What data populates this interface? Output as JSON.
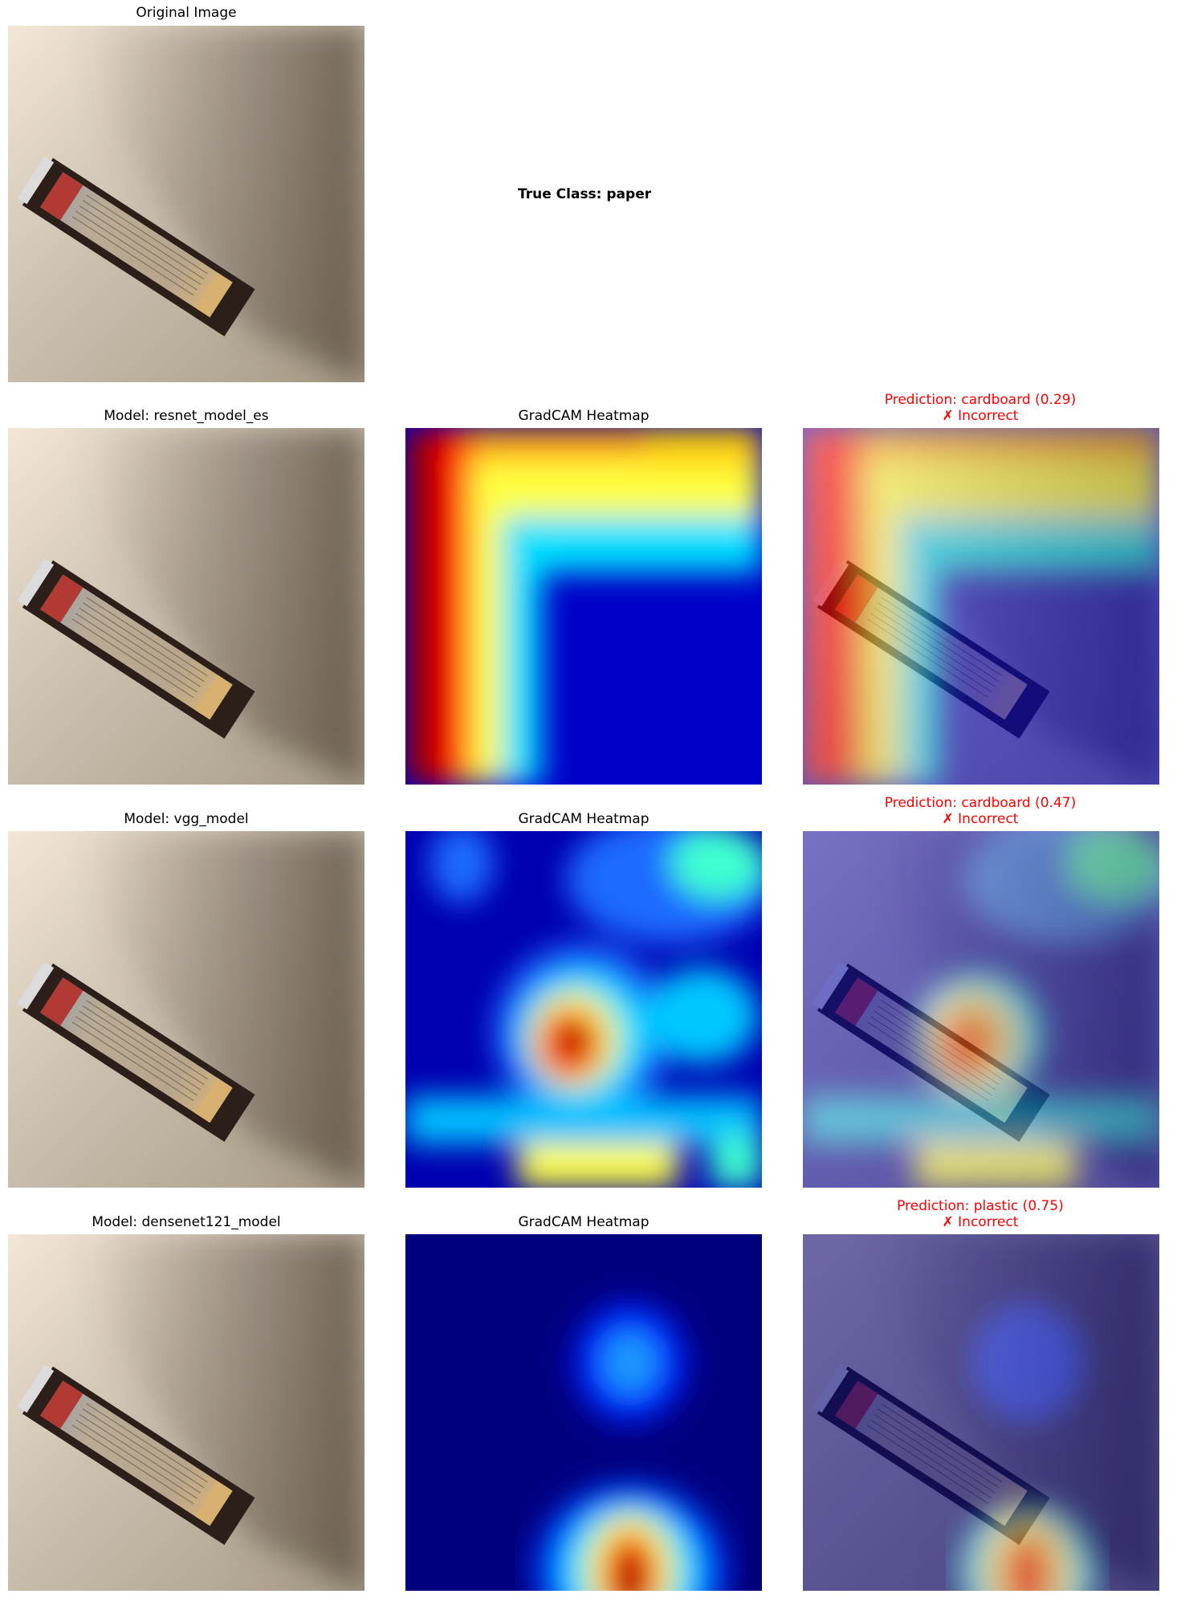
{
  "original": {
    "title": "Original Image",
    "true_class": "True Class: paper"
  },
  "rows": [
    {
      "model_title": "Model: resnet_model_es",
      "heatmap_title": "GradCAM Heatmap",
      "prediction": "Prediction: cardboard (0.29)",
      "verdict": "✗ Incorrect"
    },
    {
      "model_title": "Model: vgg_model",
      "heatmap_title": "GradCAM Heatmap",
      "prediction": "Prediction: cardboard (0.47)",
      "verdict": "✗ Incorrect"
    },
    {
      "model_title": "Model: densenet121_model",
      "heatmap_title": "GradCAM Heatmap",
      "prediction": "Prediction: plastic (0.75)",
      "verdict": "✗ Incorrect"
    }
  ],
  "colors": {
    "wall": "#d9cfc2",
    "box": "#3a2a22",
    "label": "#c9b79e",
    "incorrect": "#ff0000",
    "jet_low": "#00007f",
    "jet_high": "#7f0000"
  }
}
